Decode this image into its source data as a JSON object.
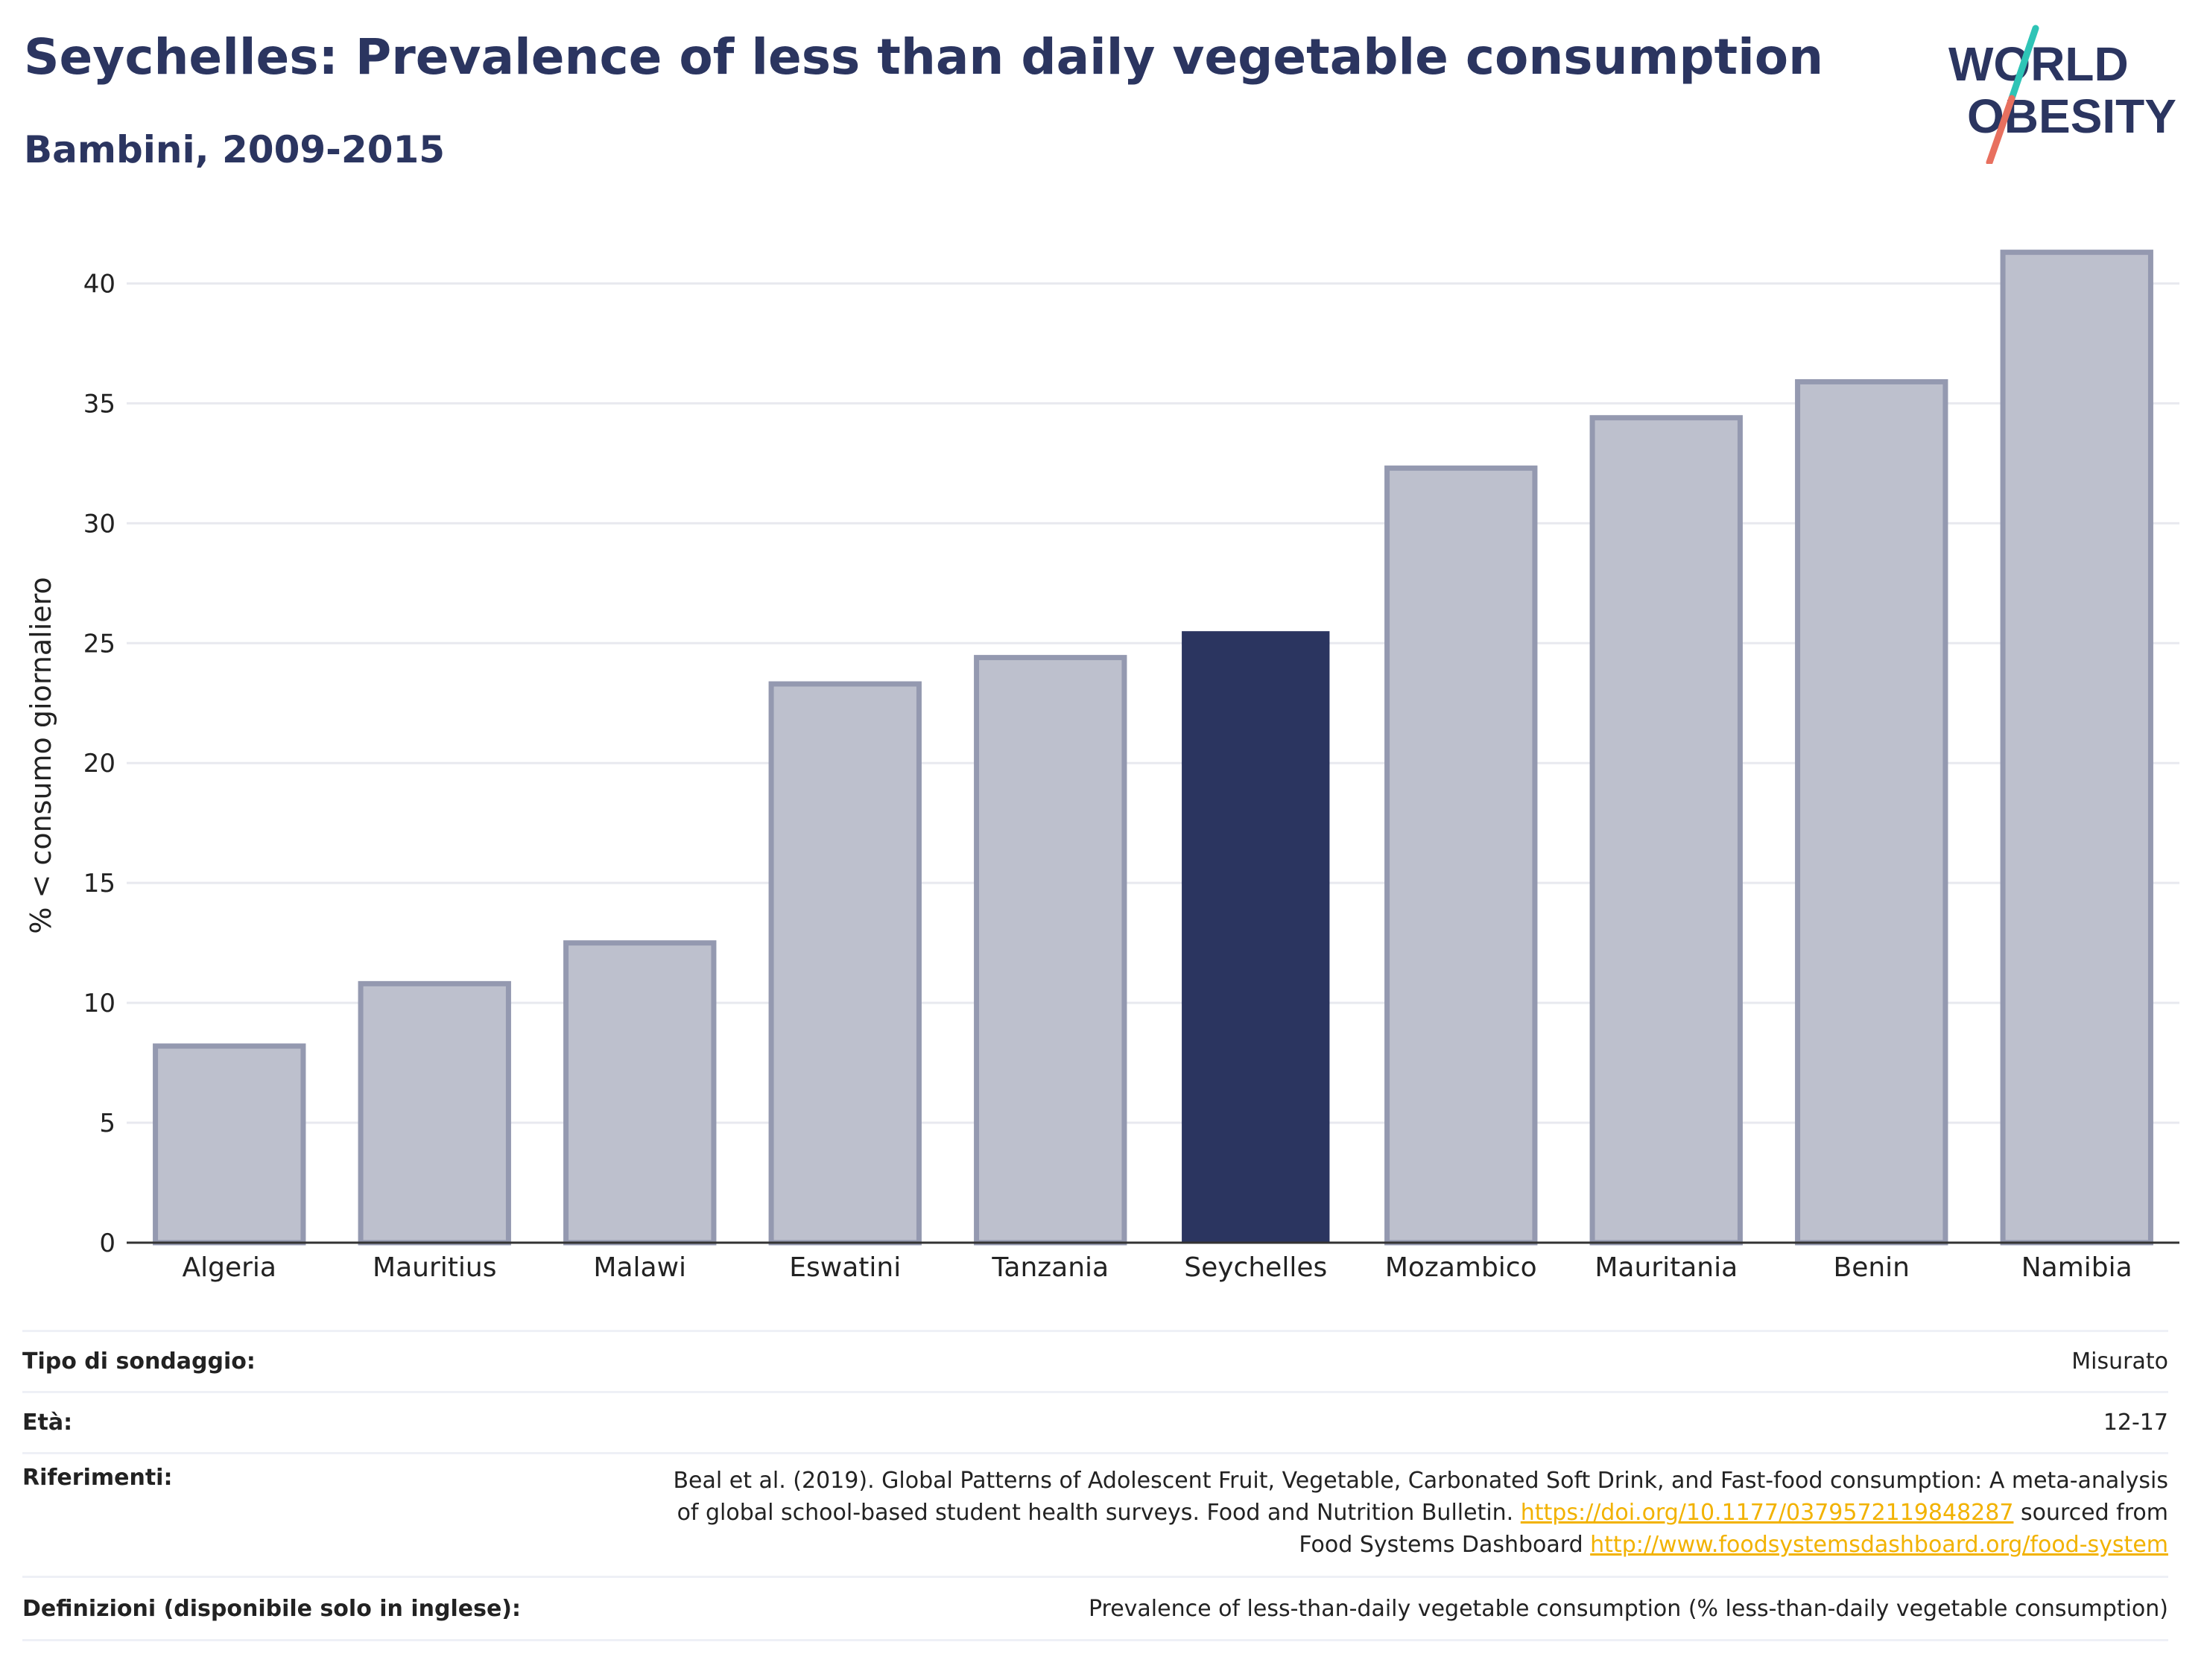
{
  "header": {
    "title": "Seychelles: Prevalence of less than daily vegetable consumption",
    "subtitle": "Bambini, 2009-2015"
  },
  "logo": {
    "line1": "WORLD",
    "line2": "OBESITY",
    "colors": {
      "text": "#2b3560",
      "teal": "#2ec4b6",
      "coral": "#e8705f"
    }
  },
  "chart_data": {
    "type": "bar",
    "categories": [
      "Algeria",
      "Mauritius",
      "Malawi",
      "Eswatini",
      "Tanzania",
      "Seychelles",
      "Mozambico",
      "Mauritania",
      "Benin",
      "Namibia"
    ],
    "values": [
      8.2,
      10.8,
      12.5,
      23.3,
      24.4,
      25.5,
      32.3,
      34.4,
      35.9,
      41.3
    ],
    "highlight": "Seychelles",
    "ylabel": "% < consumo giornaliero",
    "xlabel": "",
    "ylim": [
      0,
      42.5
    ],
    "yticks": [
      0,
      5,
      10,
      15,
      20,
      25,
      30,
      35,
      40
    ],
    "grid": true,
    "colors": {
      "bar": "#2b3560",
      "bar_muted_fill": "#bdc0cd",
      "bar_muted_stroke": "#9499b0",
      "grid": "#e8e9ef",
      "axis": "#333333"
    }
  },
  "meta": {
    "rows": [
      {
        "label": "Tipo di sondaggio:",
        "value": "Misurato"
      },
      {
        "label": "Età:",
        "value": "12-17"
      },
      {
        "label": "Riferimenti:",
        "value_line1": "Beal et al. (2019). Global Patterns of Adolescent Fruit, Vegetable, Carbonated Soft Drink, and Fast-food consumption: A meta-analysis",
        "value_line2_pre": "of global school-based student health surveys. Food and Nutrition Bulletin. ",
        "value_link1": "https://doi.org/10.1177/0379572119848287",
        "value_line2_post": " sourced from",
        "value_line3_pre": "Food Systems Dashboard ",
        "value_link2": "http://www.foodsystemsdashboard.org/food-system"
      },
      {
        "label": "Definizioni (disponibile solo in inglese):",
        "value": "Prevalence of less-than-daily vegetable consumption (% less-than-daily vegetable consumption)"
      }
    ]
  }
}
